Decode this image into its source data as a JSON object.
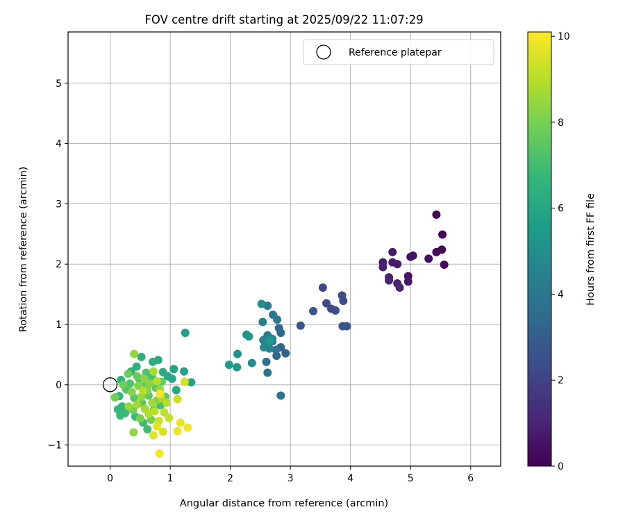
{
  "chart_data": {
    "type": "scatter",
    "title": "FOV centre drift starting at 2025/09/22 11:07:29",
    "xlabel": "Angular distance from reference (arcmin)",
    "ylabel": "Rotation from reference (arcmin)",
    "xlim": [
      -0.7,
      6.5
    ],
    "ylim": [
      -1.35,
      5.85
    ],
    "xticks": [
      0,
      1,
      2,
      3,
      4,
      5,
      6
    ],
    "yticks": [
      -1,
      0,
      1,
      2,
      3,
      4,
      5
    ],
    "xtick_labels": [
      "0",
      "1",
      "2",
      "3",
      "4",
      "5",
      "6"
    ],
    "ytick_labels": [
      "−1",
      "0",
      "1",
      "2",
      "3",
      "4",
      "5"
    ],
    "grid": true,
    "legend": {
      "position": "top-right",
      "entries": [
        {
          "label": "Reference platepar",
          "marker": "open-circle"
        }
      ]
    },
    "reference_point": {
      "x": 0,
      "y": 0,
      "label": "Reference platepar"
    },
    "colorbar": {
      "label": "Hours from first FF file",
      "colormap": "viridis",
      "range": [
        0,
        10.1
      ],
      "ticks": [
        0,
        2,
        4,
        6,
        8,
        10
      ],
      "tick_labels": [
        "0",
        "2",
        "4",
        "6",
        "8",
        "10"
      ],
      "stops": [
        "#440154",
        "#482878",
        "#3e4989",
        "#31688e",
        "#26828e",
        "#1f9e89",
        "#35b779",
        "#6ece58",
        "#b5de2b",
        "#fde725"
      ]
    },
    "points": [
      {
        "x": 5.43,
        "y": 2.82,
        "h": 0.1
      },
      {
        "x": 5.53,
        "y": 2.49,
        "h": 0.1
      },
      {
        "x": 5.52,
        "y": 2.24,
        "h": 0.2
      },
      {
        "x": 5.43,
        "y": 2.2,
        "h": 0.2
      },
      {
        "x": 5.56,
        "y": 1.99,
        "h": 0.2
      },
      {
        "x": 5.3,
        "y": 2.09,
        "h": 0.3
      },
      {
        "x": 5.04,
        "y": 2.14,
        "h": 0.4
      },
      {
        "x": 5.0,
        "y": 2.12,
        "h": 0.5
      },
      {
        "x": 4.96,
        "y": 1.8,
        "h": 0.5
      },
      {
        "x": 4.96,
        "y": 1.71,
        "h": 0.6
      },
      {
        "x": 4.78,
        "y": 2.0,
        "h": 0.6
      },
      {
        "x": 4.7,
        "y": 2.2,
        "h": 0.7
      },
      {
        "x": 4.7,
        "y": 2.03,
        "h": 0.7
      },
      {
        "x": 4.54,
        "y": 2.03,
        "h": 0.8
      },
      {
        "x": 4.54,
        "y": 1.95,
        "h": 0.9
      },
      {
        "x": 4.64,
        "y": 1.78,
        "h": 0.9
      },
      {
        "x": 4.64,
        "y": 1.73,
        "h": 1.0
      },
      {
        "x": 4.78,
        "y": 1.68,
        "h": 1.0
      },
      {
        "x": 4.82,
        "y": 1.61,
        "h": 1.1
      },
      {
        "x": 3.54,
        "y": 1.61,
        "h": 2.2
      },
      {
        "x": 3.6,
        "y": 1.35,
        "h": 2.3
      },
      {
        "x": 3.86,
        "y": 1.48,
        "h": 2.3
      },
      {
        "x": 3.88,
        "y": 1.39,
        "h": 2.4
      },
      {
        "x": 3.68,
        "y": 1.26,
        "h": 2.4
      },
      {
        "x": 3.75,
        "y": 1.23,
        "h": 2.5
      },
      {
        "x": 3.38,
        "y": 1.22,
        "h": 2.6
      },
      {
        "x": 3.87,
        "y": 0.97,
        "h": 2.6
      },
      {
        "x": 3.94,
        "y": 0.97,
        "h": 2.7
      },
      {
        "x": 3.17,
        "y": 0.98,
        "h": 2.8
      },
      {
        "x": 2.92,
        "y": 0.52,
        "h": 3.1
      },
      {
        "x": 2.84,
        "y": 0.62,
        "h": 3.2
      },
      {
        "x": 2.77,
        "y": 0.48,
        "h": 3.3
      },
      {
        "x": 2.84,
        "y": 0.86,
        "h": 3.4
      },
      {
        "x": 2.81,
        "y": 0.94,
        "h": 3.5
      },
      {
        "x": 2.7,
        "y": 0.72,
        "h": 3.6
      },
      {
        "x": 2.76,
        "y": 0.58,
        "h": 3.7
      },
      {
        "x": 2.6,
        "y": 0.38,
        "h": 3.7
      },
      {
        "x": 2.62,
        "y": 0.2,
        "h": 3.8
      },
      {
        "x": 2.84,
        "y": -0.18,
        "h": 3.9
      },
      {
        "x": 2.71,
        "y": 1.16,
        "h": 4.0
      },
      {
        "x": 2.78,
        "y": 1.08,
        "h": 4.1
      },
      {
        "x": 2.62,
        "y": 1.31,
        "h": 4.2
      },
      {
        "x": 2.54,
        "y": 1.04,
        "h": 4.3
      },
      {
        "x": 2.62,
        "y": 0.82,
        "h": 4.4
      },
      {
        "x": 2.55,
        "y": 0.74,
        "h": 4.5
      },
      {
        "x": 2.6,
        "y": 0.66,
        "h": 4.6
      },
      {
        "x": 2.7,
        "y": 0.76,
        "h": 4.6
      },
      {
        "x": 2.65,
        "y": 0.6,
        "h": 4.7
      },
      {
        "x": 2.56,
        "y": 0.62,
        "h": 4.8
      },
      {
        "x": 2.52,
        "y": 1.34,
        "h": 4.9
      },
      {
        "x": 2.36,
        "y": 0.36,
        "h": 5.0
      },
      {
        "x": 2.12,
        "y": 0.51,
        "h": 5.1
      },
      {
        "x": 2.27,
        "y": 0.83,
        "h": 5.2
      },
      {
        "x": 2.31,
        "y": 0.8,
        "h": 5.3
      },
      {
        "x": 2.11,
        "y": 0.29,
        "h": 5.4
      },
      {
        "x": 1.98,
        "y": 0.33,
        "h": 5.5
      },
      {
        "x": 2.66,
        "y": 0.73,
        "h": 5.5
      },
      {
        "x": 1.25,
        "y": 0.86,
        "h": 5.7
      },
      {
        "x": 1.23,
        "y": 0.22,
        "h": 5.8
      },
      {
        "x": 1.35,
        "y": 0.04,
        "h": 5.8
      },
      {
        "x": 1.06,
        "y": 0.26,
        "h": 5.9
      },
      {
        "x": 1.03,
        "y": 0.1,
        "h": 6.0
      },
      {
        "x": 0.96,
        "y": 0.14,
        "h": 6.0
      },
      {
        "x": 1.1,
        "y": -0.09,
        "h": 6.1
      },
      {
        "x": 0.88,
        "y": 0.21,
        "h": 6.2
      },
      {
        "x": 0.8,
        "y": 0.41,
        "h": 6.3
      },
      {
        "x": 0.71,
        "y": 0.38,
        "h": 6.3
      },
      {
        "x": 0.52,
        "y": 0.46,
        "h": 6.4
      },
      {
        "x": 0.44,
        "y": 0.3,
        "h": 6.5
      },
      {
        "x": 0.35,
        "y": 0.22,
        "h": 6.5
      },
      {
        "x": 0.18,
        "y": 0.08,
        "h": 6.6
      },
      {
        "x": 0.15,
        "y": -0.19,
        "h": 6.6
      },
      {
        "x": 0.2,
        "y": -0.36,
        "h": 6.7
      },
      {
        "x": 0.13,
        "y": -0.41,
        "h": 6.7
      },
      {
        "x": 0.17,
        "y": -0.51,
        "h": 6.8
      },
      {
        "x": 0.25,
        "y": -0.47,
        "h": 6.8
      },
      {
        "x": 0.42,
        "y": -0.53,
        "h": 6.9
      },
      {
        "x": 0.55,
        "y": -0.63,
        "h": 6.9
      },
      {
        "x": 0.62,
        "y": -0.74,
        "h": 7.0
      },
      {
        "x": 0.73,
        "y": -0.42,
        "h": 7.0
      },
      {
        "x": 0.84,
        "y": -0.34,
        "h": 7.1
      },
      {
        "x": 0.7,
        "y": 0.12,
        "h": 7.1
      },
      {
        "x": 0.6,
        "y": 0.2,
        "h": 7.2
      },
      {
        "x": 0.48,
        "y": 0.1,
        "h": 7.2
      },
      {
        "x": 0.33,
        "y": 0.02,
        "h": 7.3
      },
      {
        "x": 0.27,
        "y": -0.08,
        "h": 7.3
      },
      {
        "x": 0.4,
        "y": -0.22,
        "h": 7.4
      },
      {
        "x": 0.53,
        "y": -0.3,
        "h": 7.4
      },
      {
        "x": 0.64,
        "y": -0.18,
        "h": 7.5
      },
      {
        "x": 0.76,
        "y": -0.05,
        "h": 7.5
      },
      {
        "x": 0.86,
        "y": 0.05,
        "h": 7.6
      },
      {
        "x": 0.92,
        "y": -0.2,
        "h": 7.6
      },
      {
        "x": 0.58,
        "y": 0.0,
        "h": 7.7
      },
      {
        "x": 0.45,
        "y": 0.14,
        "h": 7.7
      },
      {
        "x": 0.3,
        "y": 0.18,
        "h": 7.8
      },
      {
        "x": 0.22,
        "y": 0.0,
        "h": 7.8
      },
      {
        "x": 0.08,
        "y": -0.21,
        "h": 7.9
      },
      {
        "x": 0.38,
        "y": -0.42,
        "h": 7.9
      },
      {
        "x": 0.5,
        "y": -0.56,
        "h": 8.0
      },
      {
        "x": 0.68,
        "y": -0.58,
        "h": 8.0
      },
      {
        "x": 0.78,
        "y": -0.26,
        "h": 8.1
      },
      {
        "x": 0.62,
        "y": -0.1,
        "h": 8.1
      },
      {
        "x": 0.47,
        "y": -0.02,
        "h": 8.2
      },
      {
        "x": 0.36,
        "y": -0.12,
        "h": 8.2
      },
      {
        "x": 0.57,
        "y": 0.1,
        "h": 8.3
      },
      {
        "x": 0.66,
        "y": 0.02,
        "h": 8.3
      },
      {
        "x": 0.4,
        "y": 0.51,
        "h": 8.4
      },
      {
        "x": 0.39,
        "y": -0.79,
        "h": 8.4
      },
      {
        "x": 0.31,
        "y": -0.36,
        "h": 8.5
      },
      {
        "x": 0.52,
        "y": -0.2,
        "h": 8.5
      },
      {
        "x": 0.7,
        "y": -0.3,
        "h": 8.6
      },
      {
        "x": 0.83,
        "y": -0.08,
        "h": 8.6
      },
      {
        "x": 0.58,
        "y": -0.4,
        "h": 8.7
      },
      {
        "x": 0.45,
        "y": -0.33,
        "h": 8.7
      },
      {
        "x": 0.72,
        "y": 0.22,
        "h": 8.8
      },
      {
        "x": 0.85,
        "y": -0.22,
        "h": 8.8
      },
      {
        "x": 0.94,
        "y": -0.3,
        "h": 8.9
      },
      {
        "x": 0.64,
        "y": -0.48,
        "h": 8.9
      },
      {
        "x": 0.55,
        "y": -0.1,
        "h": 9.0
      },
      {
        "x": 0.78,
        "y": 0.06,
        "h": 9.0
      },
      {
        "x": 0.9,
        "y": -0.46,
        "h": 9.1
      },
      {
        "x": 0.74,
        "y": -0.44,
        "h": 9.1
      },
      {
        "x": 0.98,
        "y": -0.55,
        "h": 9.2
      },
      {
        "x": 0.81,
        "y": -0.6,
        "h": 9.3
      },
      {
        "x": 1.12,
        "y": -0.24,
        "h": 9.3
      },
      {
        "x": 1.24,
        "y": 0.05,
        "h": 9.4
      },
      {
        "x": 0.88,
        "y": -0.78,
        "h": 9.5
      },
      {
        "x": 0.72,
        "y": -0.84,
        "h": 9.6
      },
      {
        "x": 0.78,
        "y": -0.69,
        "h": 9.7
      },
      {
        "x": 1.12,
        "y": -0.77,
        "h": 9.8
      },
      {
        "x": 1.17,
        "y": -0.63,
        "h": 9.8
      },
      {
        "x": 1.29,
        "y": -0.71,
        "h": 9.9
      },
      {
        "x": 0.82,
        "y": -1.14,
        "h": 10.0
      },
      {
        "x": 0.83,
        "y": -0.15,
        "h": 10.0
      }
    ]
  }
}
